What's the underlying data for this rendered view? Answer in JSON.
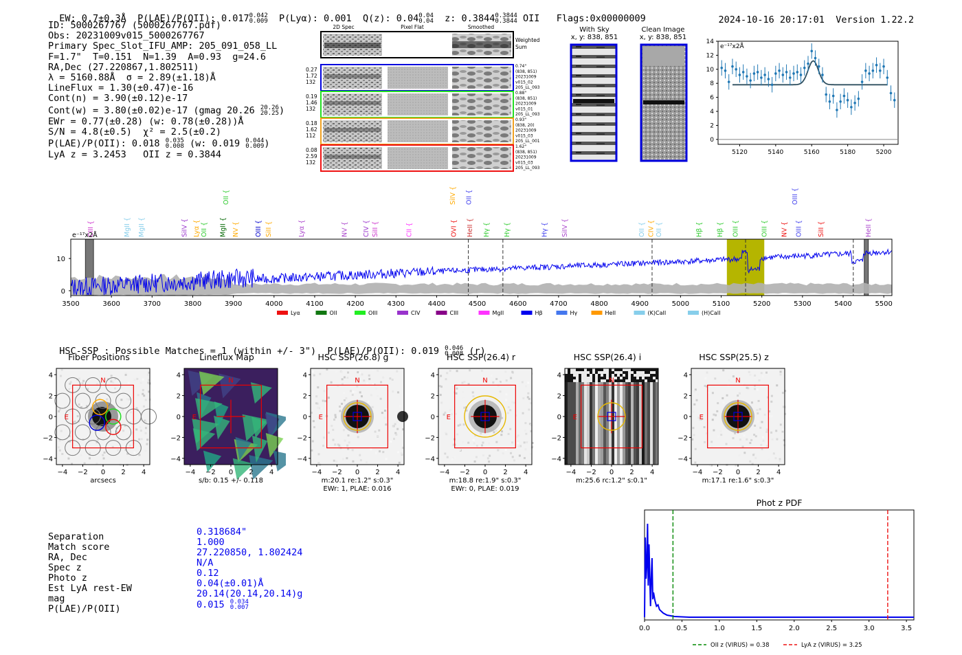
{
  "header": {
    "ew": "EW: 0.7±0.3Å",
    "plae_label": "P(LAE)/P(OII): 0.017",
    "plae_hi": "0.042",
    "plae_lo": "0.009",
    "plya": "P(Lyα): 0.001",
    "q_label": "Q(z): 0.04",
    "q_hi": "0.04",
    "q_lo": "0.04",
    "z_label": "z: 0.3844",
    "z_hi": "0.3844",
    "z_lo": "0.3844",
    "z_line": "OII",
    "flags": "Flags:0x00000009",
    "datetime": "2024-10-16 20:17:01",
    "version": "Version 1.22.2"
  },
  "info": {
    "lines": [
      "ID: 5000267767 (5000267767.pdf)",
      "Obs: 20231009v015_5000267767",
      "Primary Spec_Slot_IFU_AMP: 205_091_058_LL",
      "F=1.7\"  T=0.151  N=1.39  A=0.93  g=24.6",
      "RA,Dec (27.220867,1.802511)",
      "λ = 5160.88Å  σ = 2.89(±1.18)Å",
      "LineFlux = 1.30(±0.47)e-16",
      "Cont(n) = 3.90(±0.12)e-17"
    ],
    "contw": "Cont(w) = 3.80(±0.02)e-17 (gmag 20.26",
    "contw_hi": "20.26",
    "contw_lo": "20.25",
    "ewr": "EWr = 0.77(±0.28) (w: 0.78(±0.28))Å",
    "sn": "S/N = 4.8(±0.5)  χ² = 2.5(±0.2)",
    "plae": "P(LAE)/P(OII): 0.018",
    "plae_hi": "0.035",
    "plae_lo": "0.008",
    "plae_w": "(w: 0.019",
    "plae_w_hi": "0.044",
    "plae_w_lo": "0.009",
    "z_line": "LyA z = 3.2453   OII z = 0.3844"
  },
  "spec2d": {
    "col_headers": [
      "2D Spec",
      "Pixel Flat",
      "Smoothed"
    ],
    "weighted_label": [
      "Weighted",
      "Sum"
    ],
    "rows": [
      {
        "color": "#0000dd",
        "left": [
          "0.27",
          "1.72",
          "132"
        ],
        "right": [
          "0.74\"",
          "(838, 851)",
          "20231009",
          "v015_02",
          "205_LL_093"
        ]
      },
      {
        "color": "#22dd22",
        "left": [
          "0.19",
          "1.46",
          "132"
        ],
        "right": [
          "0.88\"",
          "(838, 851)",
          "20231009",
          "v015_01",
          "205_LL_093"
        ]
      },
      {
        "color": "#f0a020",
        "left": [
          "0.18",
          "1.62",
          "112"
        ],
        "right": [
          "0.93\"",
          "(838, 20)",
          "20231009",
          "v015_03",
          "205_LL_001"
        ]
      },
      {
        "color": "#ee1111",
        "left": [
          "0.08",
          "2.59",
          "132"
        ],
        "right": [
          "1.62\"",
          "(838, 851)",
          "20231009",
          "v015_03",
          "205_LL_093"
        ]
      }
    ]
  },
  "with_sky": {
    "title": "With Sky",
    "coords": "x, y: 838, 851"
  },
  "clean_image": {
    "title": "Clean Image",
    "coords": "x, y: 838, 851"
  },
  "zoom_axis_label": "e⁻¹⁷x2Å",
  "main_axis_label": "e⁻¹⁷x2Å",
  "line_markers": [
    {
      "name": "CIII",
      "color": "#cc33cc",
      "x": 3547,
      "level": 0
    },
    {
      "name": "MgII",
      "color": "#87ceeb",
      "x": 3637,
      "level": 0
    },
    {
      "name": "MgII",
      "color": "#87ceeb",
      "x": 3672,
      "level": 0
    },
    {
      "name": "SiIV",
      "color": "#9933cc",
      "x": 3778,
      "level": 0
    },
    {
      "name": "Lyα",
      "color": "#ffaa00",
      "x": 3808,
      "level": 0
    },
    {
      "name": "OII",
      "color": "#33cc33",
      "x": 3826,
      "level": 0
    },
    {
      "name": "MgII",
      "color": "#006600",
      "x": 3873,
      "level": 0
    },
    {
      "name": "NV",
      "color": "#ffaa00",
      "x": 3904,
      "level": 0
    },
    {
      "name": "OII",
      "color": "#33cc33",
      "x": 3880,
      "level": 1
    },
    {
      "name": "OIII",
      "color": "#0000cc",
      "x": 3960,
      "level": 0
    },
    {
      "name": "SiII",
      "color": "#ffaa00",
      "x": 3985,
      "level": 0
    },
    {
      "name": "Lyα",
      "color": "#aa44cc",
      "x": 4066,
      "level": 0
    },
    {
      "name": "NV",
      "color": "#aa44cc",
      "x": 4172,
      "level": 0
    },
    {
      "name": "CIV",
      "color": "#9933cc",
      "x": 4225,
      "level": 0
    },
    {
      "name": "SiII",
      "color": "#cc33cc",
      "x": 4247,
      "level": 0
    },
    {
      "name": "CII",
      "color": "#ff33ff",
      "x": 4331,
      "level": 0
    },
    {
      "name": "OVI",
      "color": "#ee1111",
      "x": 4441,
      "level": 0
    },
    {
      "name": "SiIV",
      "color": "#ffaa00",
      "x": 4438,
      "level": 1
    },
    {
      "name": "OII",
      "color": "#4444ee",
      "x": 4478,
      "level": 1
    },
    {
      "name": "HeII",
      "color": "#cc3333",
      "x": 4480,
      "level": 0
    },
    {
      "name": "Hγ",
      "color": "#33cc33",
      "x": 4521,
      "level": 0
    },
    {
      "name": "Hγ",
      "color": "#33cc33",
      "x": 4572,
      "level": 0
    },
    {
      "name": "Hγ",
      "color": "#4444ee",
      "x": 4664,
      "level": 0
    },
    {
      "name": "SiIV",
      "color": "#aa44cc",
      "x": 4714,
      "level": 0
    },
    {
      "name": "OII",
      "color": "#87ceeb",
      "x": 4903,
      "level": 0
    },
    {
      "name": "CIV",
      "color": "#ffaa00",
      "x": 4926,
      "level": 0
    },
    {
      "name": "OII",
      "color": "#87ceeb",
      "x": 4945,
      "level": 0
    },
    {
      "name": "Hβ",
      "color": "#33cc33",
      "x": 5044,
      "level": 0
    },
    {
      "name": "Hβ",
      "color": "#33cc33",
      "x": 5096,
      "level": 0
    },
    {
      "name": "OIII",
      "color": "#33cc33",
      "x": 5134,
      "level": 0
    },
    {
      "name": "OIII",
      "color": "#33cc33",
      "x": 5205,
      "level": 0
    },
    {
      "name": "NV",
      "color": "#ee1111",
      "x": 5254,
      "level": 0
    },
    {
      "name": "OIII",
      "color": "#4444ee",
      "x": 5289,
      "level": 0
    },
    {
      "name": "SiII",
      "color": "#ee1111",
      "x": 5344,
      "level": 0
    },
    {
      "name": "OIII",
      "color": "#4444ee",
      "x": 5280,
      "level": 1
    },
    {
      "name": "HeII",
      "color": "#aa44cc",
      "x": 5461,
      "level": 0
    }
  ],
  "legend": [
    {
      "label": "Lyα",
      "color": "#ee1111"
    },
    {
      "label": "OII",
      "color": "#117711"
    },
    {
      "label": "OIII",
      "color": "#22ee22"
    },
    {
      "label": "CIV",
      "color": "#9933cc"
    },
    {
      "label": "CIII",
      "color": "#880088"
    },
    {
      "label": "MgII",
      "color": "#ff33ff"
    },
    {
      "label": "Hβ",
      "color": "#0000ee"
    },
    {
      "label": "Hγ",
      "color": "#4477ee"
    },
    {
      "label": "HeII",
      "color": "#ff9900"
    },
    {
      "label": "(K)CaII",
      "color": "#87ceeb"
    },
    {
      "label": "(H)CaII",
      "color": "#87ceeb"
    }
  ],
  "hsc_header": {
    "text": "HSC-SSP : Possible Matches = 1 (within +/- 3\")  P(LAE)/P(OII): 0.019",
    "hi": "0.046",
    "lo": "0.008",
    "band": "(r)"
  },
  "cutouts": [
    {
      "title": "Fiber Positions",
      "caption1": "arcsecs",
      "caption2": "",
      "kind": "fiber"
    },
    {
      "title": "Lineflux Map",
      "caption1": "s/b: 0.15 +/- 0.118",
      "caption2": "",
      "kind": "lineflux"
    },
    {
      "title": "HSC SSP(26.8) g",
      "caption1": "m:20.1   re:1.2\"  s:0.3\"",
      "caption2": "EWr: 1, PLAE: 0.016",
      "kind": "star"
    },
    {
      "title": "HSC SSP(26.4) r",
      "caption1": "m:18.8   re:1.9\"  s:0.3\"",
      "caption2": "EWr: 0, PLAE: 0.019",
      "kind": "star"
    },
    {
      "title": "HSC SSP(26.4) i",
      "caption1": "m:25.6 rc:1.2\"  s:0.1\"",
      "caption2": "",
      "kind": "stripes"
    },
    {
      "title": "HSC SSP(25.5) z",
      "caption1": "m:17.1   re:1.6\"  s:0.3\"",
      "caption2": "",
      "kind": "star"
    }
  ],
  "cutout_marks": {
    "north": "N",
    "east": "E"
  },
  "match": {
    "labels": [
      "Separation",
      "Match score",
      "RA, Dec",
      "Spec z",
      "Photo z",
      "Est LyA rest-EW",
      "mag",
      "P(LAE)/P(OII)"
    ],
    "values": [
      "0.318684\"",
      "1.000",
      "27.220850, 1.802424",
      "N/A",
      "0.12",
      "0.04(±0.01)Å",
      "20.14(20.14,20.14)g",
      "0.015"
    ],
    "plae_hi": "0.034",
    "plae_lo": "0.007"
  },
  "chart_data": [
    {
      "type": "scatter",
      "title": "",
      "ylabel": "e⁻¹⁷x2Å",
      "xlim": [
        5108,
        5208
      ],
      "ylim": [
        -0.7,
        14
      ],
      "xticks": [
        5120,
        5140,
        5160,
        5180,
        5200
      ],
      "yticks": [
        0,
        2,
        4,
        6,
        8,
        10,
        12,
        14
      ],
      "points": [
        [
          5110,
          10.2
        ],
        [
          5112,
          9.8
        ],
        [
          5114,
          8.2
        ],
        [
          5116,
          10.4
        ],
        [
          5118,
          10.0
        ],
        [
          5120,
          9.2
        ],
        [
          5122,
          9.6
        ],
        [
          5124,
          9.0
        ],
        [
          5126,
          8.4
        ],
        [
          5128,
          9.4
        ],
        [
          5130,
          9.6
        ],
        [
          5132,
          8.8
        ],
        [
          5134,
          9.2
        ],
        [
          5136,
          8.6
        ],
        [
          5138,
          7.8
        ],
        [
          5140,
          9.4
        ],
        [
          5142,
          9.8
        ],
        [
          5144,
          9.2
        ],
        [
          5146,
          9.6
        ],
        [
          5148,
          8.8
        ],
        [
          5150,
          9.4
        ],
        [
          5152,
          9.6
        ],
        [
          5154,
          9.2
        ],
        [
          5156,
          10.2
        ],
        [
          5158,
          10.8
        ],
        [
          5160,
          12.6
        ],
        [
          5162,
          11.6
        ],
        [
          5164,
          10.4
        ],
        [
          5166,
          9.2
        ],
        [
          5168,
          6.4
        ],
        [
          5170,
          5.4
        ],
        [
          5172,
          6.2
        ],
        [
          5174,
          4.2
        ],
        [
          5176,
          5.4
        ],
        [
          5178,
          6.2
        ],
        [
          5180,
          5.6
        ],
        [
          5182,
          4.6
        ],
        [
          5184,
          5.2
        ],
        [
          5186,
          5.8
        ],
        [
          5188,
          8.2
        ],
        [
          5190,
          9.8
        ],
        [
          5192,
          9.4
        ],
        [
          5194,
          9.8
        ],
        [
          5196,
          10.6
        ],
        [
          5198,
          9.8
        ],
        [
          5200,
          10.4
        ],
        [
          5202,
          8.8
        ],
        [
          5204,
          6.6
        ],
        [
          5206,
          5.6
        ]
      ],
      "fit": {
        "continuum": 7.8,
        "center": 5160.88,
        "sigma": 2.89,
        "amplitude": 3.4
      },
      "errors": 1.1
    },
    {
      "type": "line",
      "title": "",
      "ylabel": "e⁻¹⁷x2Å",
      "xlim": [
        3500,
        5520
      ],
      "ylim": [
        -1.5,
        16
      ],
      "xticks": [
        3500,
        3600,
        3700,
        3800,
        3900,
        4000,
        4100,
        4200,
        4300,
        4400,
        4500,
        4600,
        4700,
        4800,
        4900,
        5000,
        5100,
        5200,
        5300,
        5400,
        5500
      ],
      "yticks": [
        0,
        10
      ],
      "series": [
        {
          "color": "#0000ee"
        }
      ],
      "dashed_lines": [
        4478,
        4563,
        4930,
        5160,
        5425
      ],
      "highlight": [
        5114,
        5206
      ],
      "hatched": [
        [
          3536,
          3556
        ],
        [
          5452,
          5462
        ]
      ]
    },
    {
      "type": "line",
      "title": "Phot z PDF",
      "xlim": [
        0,
        3.6
      ],
      "xticks": [
        0.0,
        0.5,
        1.0,
        1.5,
        2.0,
        2.5,
        3.0,
        3.5
      ],
      "legend": [
        {
          "label": "OII z (VIRUS) = 0.38",
          "color": "#008800",
          "value": 0.38
        },
        {
          "label": "LyA z (VIRUS) = 3.25",
          "color": "#ee1111",
          "value": 3.25
        }
      ]
    }
  ]
}
